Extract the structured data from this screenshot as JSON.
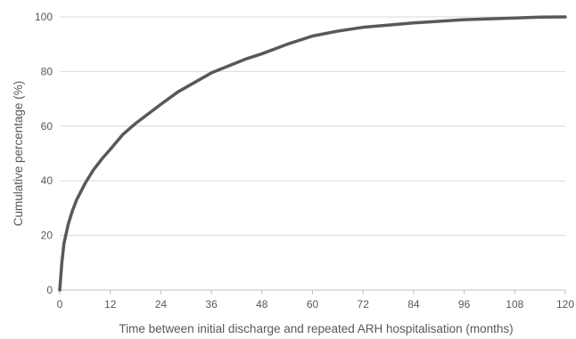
{
  "chart_data": {
    "type": "line",
    "title": "",
    "xlabel": "Time between initial discharge and repeated ARH hospitalisation (months)",
    "ylabel": "Cumulative percentage (%)",
    "xlim": [
      0,
      120
    ],
    "ylim": [
      0,
      100
    ],
    "xticks": [
      0,
      12,
      24,
      36,
      48,
      60,
      72,
      84,
      96,
      108,
      120
    ],
    "yticks": [
      0,
      20,
      40,
      60,
      80,
      100
    ],
    "grid": "horizontal",
    "legend": "none",
    "colors": {
      "line": "#595959",
      "grid": "#d9d9d9",
      "axis": "#bfbfbf",
      "text": "#595959"
    },
    "series": [
      {
        "x": [
          0,
          0.5,
          1,
          2,
          3,
          4,
          6,
          8,
          10,
          12,
          15,
          18,
          21,
          24,
          28,
          32,
          36,
          40,
          44,
          48,
          54,
          60,
          66,
          72,
          84,
          96,
          108,
          114,
          120
        ],
        "values": [
          0,
          10,
          17,
          24,
          29,
          33,
          39,
          44,
          48,
          51.5,
          57,
          61,
          64.5,
          68,
          72.5,
          76,
          79.5,
          82,
          84.5,
          86.5,
          90,
          93,
          94.8,
          96.2,
          97.8,
          99,
          99.6,
          99.9,
          100
        ]
      }
    ]
  }
}
